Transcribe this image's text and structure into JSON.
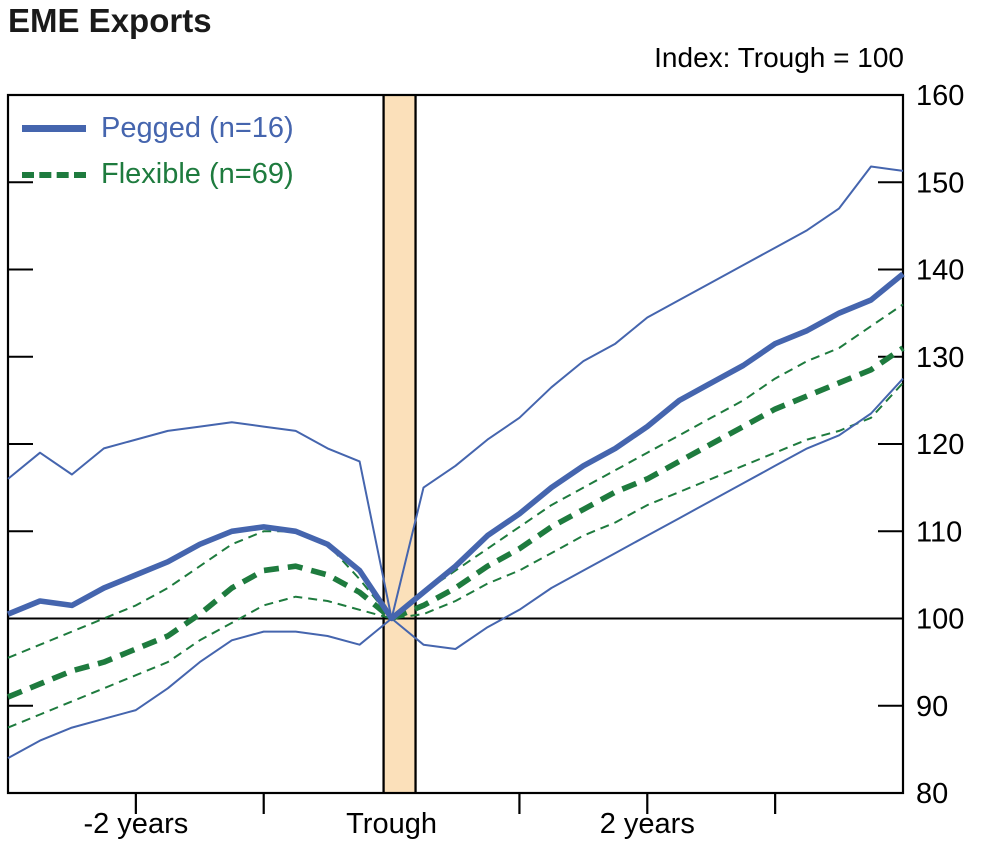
{
  "header": {
    "title": "EME Exports",
    "index_note": "Index: Trough = 100"
  },
  "legend": [
    {
      "label": "Pegged (n=16)",
      "series_id": "pegged-median"
    },
    {
      "label": "Flexible (n=69)",
      "series_id": "flexible-median"
    }
  ],
  "colors": {
    "pegged": "#4565ae",
    "flexible": "#1e7b3e",
    "band": "#fbe0ba",
    "axis": "#000000",
    "background": "#ffffff"
  },
  "chart_data": {
    "type": "line",
    "title": "EME Exports",
    "subtitle": "Index: Trough = 100",
    "x_unit": "quarters relative to trough",
    "xlim": [
      -12,
      16
    ],
    "ylim": [
      80,
      160
    ],
    "yticks": [
      80,
      90,
      100,
      110,
      120,
      130,
      140,
      150,
      160
    ],
    "xticks": [
      {
        "t": -8,
        "label": "-2 years"
      },
      {
        "t": -4,
        "label": ""
      },
      {
        "t": 0,
        "label": "Trough"
      },
      {
        "t": 4,
        "label": ""
      },
      {
        "t": 8,
        "label": "2 years"
      },
      {
        "t": 12,
        "label": ""
      }
    ],
    "reference_line_y": 100,
    "trough_band": {
      "from": -0.25,
      "to": 0.75
    },
    "x": [
      -12,
      -11,
      -10,
      -9,
      -8,
      -7,
      -6,
      -5,
      -4,
      -3,
      -2,
      -1,
      0,
      1,
      2,
      3,
      4,
      5,
      6,
      7,
      8,
      9,
      10,
      11,
      12,
      13,
      14,
      15,
      16
    ],
    "series": [
      {
        "id": "flexible-upper-band",
        "name": "Flexible upper band",
        "color": "#1e7b3e",
        "width": "thin",
        "dash": "dashed",
        "values": [
          95.5,
          97,
          98.5,
          100,
          101.5,
          103.5,
          106,
          108.5,
          110,
          110,
          108.5,
          104.5,
          100,
          103,
          105.5,
          108,
          110.5,
          113,
          115,
          117,
          119,
          121,
          123,
          125,
          127.5,
          129.5,
          131,
          133.5,
          136
        ]
      },
      {
        "id": "flexible-lower-band",
        "name": "Flexible lower band",
        "color": "#1e7b3e",
        "width": "thin",
        "dash": "dashed",
        "values": [
          87.5,
          89,
          90.5,
          92,
          93.5,
          95,
          97.5,
          99.5,
          101.5,
          102.5,
          102,
          101,
          100,
          100.5,
          102,
          104,
          105.5,
          107.5,
          109.5,
          111,
          113,
          114.5,
          116,
          117.5,
          119,
          120.5,
          121.5,
          123,
          127
        ]
      },
      {
        "id": "pegged-upper-band",
        "name": "Pegged upper band",
        "color": "#4565ae",
        "width": "thin",
        "dash": "solid",
        "values": [
          116,
          119,
          116.5,
          119.5,
          120.5,
          121.5,
          122,
          122.5,
          122,
          121.5,
          119.5,
          118,
          100,
          115,
          117.5,
          120.5,
          123,
          126.5,
          129.5,
          131.5,
          134.5,
          136.5,
          138.5,
          140.5,
          142.5,
          144.5,
          147,
          151.8,
          151.3
        ]
      },
      {
        "id": "pegged-lower-band",
        "name": "Pegged lower band",
        "color": "#4565ae",
        "width": "thin",
        "dash": "solid",
        "values": [
          84,
          86,
          87.5,
          88.5,
          89.5,
          92,
          95,
          97.5,
          98.5,
          98.5,
          98,
          97,
          100,
          97,
          96.5,
          99,
          101,
          103.5,
          105.5,
          107.5,
          109.5,
          111.5,
          113.5,
          115.5,
          117.5,
          119.5,
          121,
          123.5,
          127.5
        ]
      },
      {
        "id": "flexible-median",
        "name": "Flexible (n=69)",
        "color": "#1e7b3e",
        "width": "thick",
        "dash": "dashed",
        "values": [
          91,
          92.5,
          94,
          95,
          96.5,
          98,
          100.5,
          103.5,
          105.5,
          106,
          105,
          103,
          100,
          101.5,
          103.5,
          106,
          108,
          110.5,
          112.5,
          114.5,
          116,
          118,
          120,
          122,
          124,
          125.5,
          127,
          128.5,
          131
        ]
      },
      {
        "id": "pegged-median",
        "name": "Pegged (n=16)",
        "color": "#4565ae",
        "width": "thick",
        "dash": "solid",
        "values": [
          100.5,
          102,
          101.5,
          103.5,
          105,
          106.5,
          108.5,
          110,
          110.5,
          110,
          108.5,
          105.5,
          100,
          103,
          106,
          109.5,
          112,
          115,
          117.5,
          119.5,
          122,
          125,
          127,
          129,
          131.5,
          133,
          135,
          136.5,
          139.5
        ]
      }
    ]
  }
}
